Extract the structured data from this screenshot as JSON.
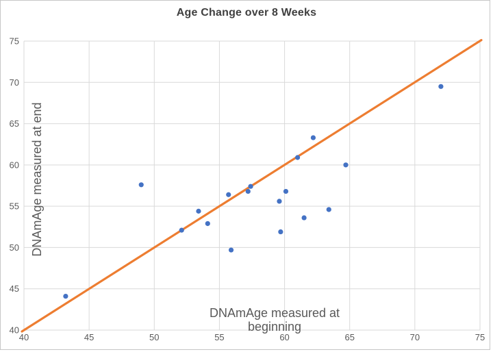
{
  "chart_data": {
    "type": "scatter",
    "title": "Age Change over 8 Weeks",
    "xlabel": "DNAmAge measured at beginning",
    "ylabel": "DNAmAge measured at end",
    "xlim": [
      40,
      75
    ],
    "ylim": [
      40,
      75
    ],
    "xticks": [
      40,
      45,
      50,
      55,
      60,
      65,
      70,
      75
    ],
    "yticks": [
      40,
      45,
      50,
      55,
      60,
      65,
      70,
      75
    ],
    "grid": true,
    "legend": "none",
    "points": [
      {
        "x": 43.2,
        "y": 44.1
      },
      {
        "x": 49.0,
        "y": 57.6
      },
      {
        "x": 52.1,
        "y": 52.1
      },
      {
        "x": 53.4,
        "y": 54.4
      },
      {
        "x": 54.1,
        "y": 52.9
      },
      {
        "x": 55.7,
        "y": 56.4
      },
      {
        "x": 55.9,
        "y": 49.7
      },
      {
        "x": 57.2,
        "y": 56.8
      },
      {
        "x": 57.4,
        "y": 57.4
      },
      {
        "x": 59.6,
        "y": 55.6
      },
      {
        "x": 59.7,
        "y": 51.9
      },
      {
        "x": 60.1,
        "y": 56.8
      },
      {
        "x": 61.0,
        "y": 60.9
      },
      {
        "x": 61.5,
        "y": 53.6
      },
      {
        "x": 62.2,
        "y": 63.3
      },
      {
        "x": 63.4,
        "y": 54.6
      },
      {
        "x": 64.7,
        "y": 60.0
      },
      {
        "x": 72.0,
        "y": 69.5
      }
    ],
    "identity_line": {
      "x1": 40,
      "y1": 40,
      "x2": 75,
      "y2": 75
    },
    "colors": {
      "point": "#4472C4",
      "line": "#ED7D31",
      "grid": "#D9D9D9",
      "tick_text": "#595959",
      "axis_title_text": "#595959",
      "title_text": "#3f3f3f",
      "background": "#FFFFFF"
    }
  }
}
